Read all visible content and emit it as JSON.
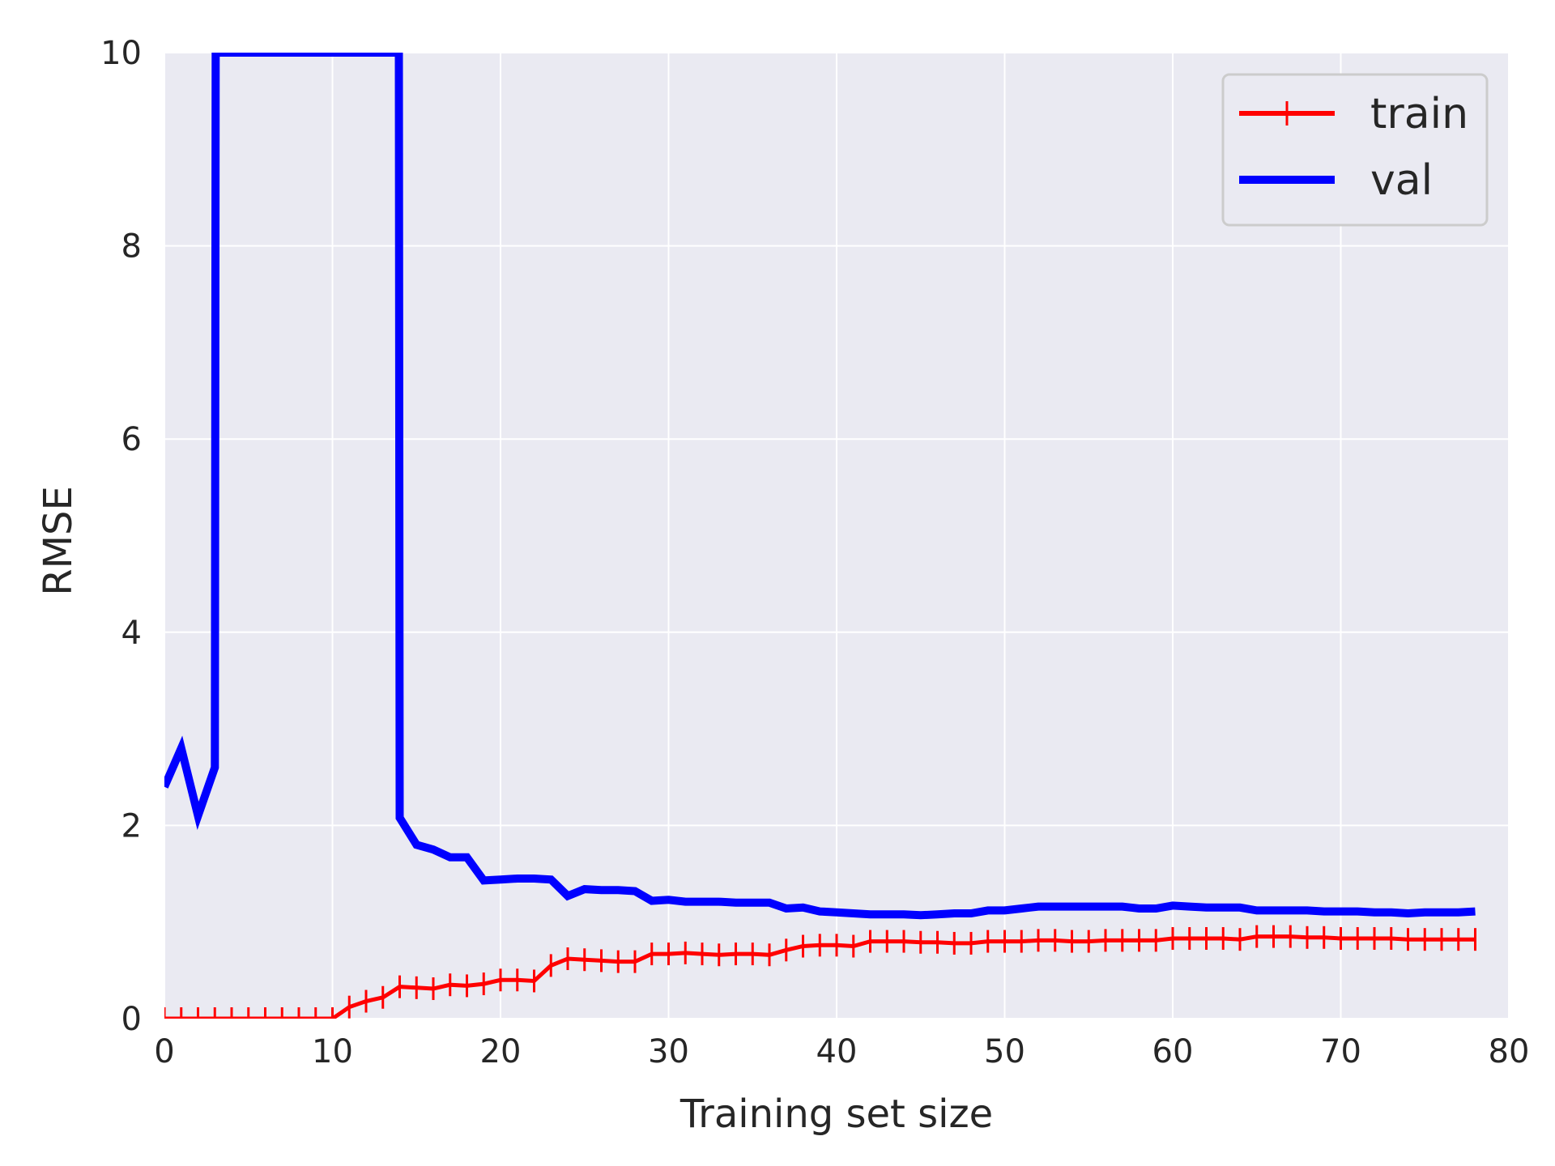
{
  "chart_data": {
    "type": "line",
    "title": "",
    "xlabel": "Training set size",
    "ylabel": "RMSE",
    "xlim": [
      0,
      80
    ],
    "ylim": [
      0,
      10
    ],
    "xticks": [
      "0",
      "10",
      "20",
      "30",
      "40",
      "50",
      "60",
      "70",
      "80"
    ],
    "yticks": [
      "0",
      "2",
      "4",
      "6",
      "8",
      "10"
    ],
    "grid": true,
    "legend_position": "top-right",
    "style": {
      "background": "#eaeaf2",
      "grid_color": "#ffffff",
      "train_color": "#ff0000",
      "val_color": "#0000ff"
    },
    "series": [
      {
        "name": "train",
        "marker": "+",
        "x": [
          0,
          1,
          2,
          3,
          4,
          5,
          6,
          7,
          8,
          9,
          10,
          11,
          12,
          13,
          14,
          15,
          16,
          17,
          18,
          19,
          20,
          21,
          22,
          23,
          24,
          25,
          26,
          27,
          28,
          29,
          30,
          31,
          32,
          33,
          34,
          35,
          36,
          37,
          38,
          39,
          40,
          41,
          42,
          43,
          44,
          45,
          46,
          47,
          48,
          49,
          50,
          51,
          52,
          53,
          54,
          55,
          56,
          57,
          58,
          59,
          60,
          61,
          62,
          63,
          64,
          65,
          66,
          67,
          68,
          69,
          70,
          71,
          72,
          73,
          74,
          75,
          76,
          77,
          78
        ],
        "y": [
          0,
          0,
          0,
          0,
          0,
          0,
          0,
          0,
          0,
          0,
          0,
          0.12,
          0.18,
          0.22,
          0.33,
          0.32,
          0.31,
          0.35,
          0.34,
          0.36,
          0.4,
          0.4,
          0.39,
          0.55,
          0.62,
          0.61,
          0.6,
          0.59,
          0.59,
          0.67,
          0.67,
          0.68,
          0.67,
          0.66,
          0.67,
          0.67,
          0.66,
          0.71,
          0.75,
          0.76,
          0.76,
          0.75,
          0.8,
          0.8,
          0.8,
          0.79,
          0.79,
          0.78,
          0.78,
          0.8,
          0.8,
          0.8,
          0.81,
          0.81,
          0.8,
          0.8,
          0.81,
          0.81,
          0.81,
          0.81,
          0.83,
          0.83,
          0.83,
          0.83,
          0.82,
          0.85,
          0.85,
          0.85,
          0.84,
          0.84,
          0.83,
          0.83,
          0.83,
          0.83,
          0.82,
          0.82,
          0.82,
          0.82,
          0.82
        ]
      },
      {
        "name": "val",
        "x": [
          0,
          1,
          2,
          3,
          3.05,
          13.95,
          14,
          15,
          16,
          17,
          18,
          19,
          20,
          21,
          22,
          23,
          24,
          25,
          26,
          27,
          28,
          29,
          30,
          31,
          32,
          33,
          34,
          35,
          36,
          37,
          38,
          39,
          40,
          41,
          42,
          43,
          44,
          45,
          46,
          47,
          48,
          49,
          50,
          51,
          52,
          53,
          54,
          55,
          56,
          57,
          58,
          59,
          60,
          61,
          62,
          63,
          64,
          65,
          66,
          67,
          68,
          69,
          70,
          71,
          72,
          73,
          74,
          75,
          76,
          77,
          78
        ],
        "y": [
          2.4,
          2.8,
          2.1,
          2.6,
          10,
          10,
          2.08,
          1.8,
          1.75,
          1.67,
          1.67,
          1.43,
          1.44,
          1.45,
          1.45,
          1.44,
          1.27,
          1.34,
          1.33,
          1.33,
          1.32,
          1.22,
          1.23,
          1.21,
          1.21,
          1.21,
          1.2,
          1.2,
          1.2,
          1.14,
          1.15,
          1.11,
          1.1,
          1.09,
          1.08,
          1.08,
          1.08,
          1.07,
          1.08,
          1.09,
          1.09,
          1.12,
          1.12,
          1.14,
          1.16,
          1.16,
          1.16,
          1.16,
          1.16,
          1.16,
          1.14,
          1.14,
          1.17,
          1.16,
          1.15,
          1.15,
          1.15,
          1.12,
          1.12,
          1.12,
          1.12,
          1.11,
          1.11,
          1.11,
          1.1,
          1.1,
          1.09,
          1.1,
          1.1,
          1.1,
          1.11
        ]
      }
    ]
  }
}
